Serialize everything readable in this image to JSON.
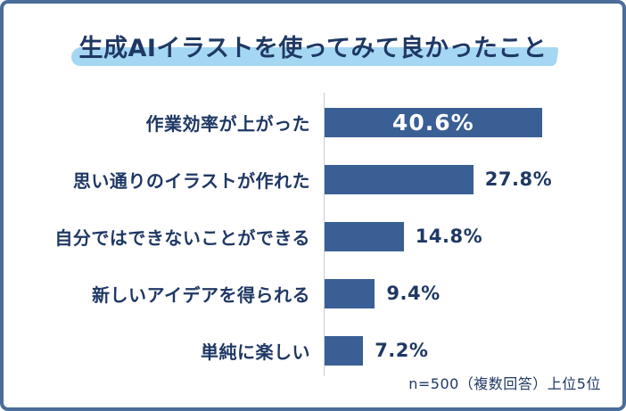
{
  "title": "生成AIイラストを使ってみて良かったこと",
  "footnote": "n=500（複数回答）上位5位",
  "colors": {
    "bar_fill": "#3a5f95",
    "frame_border": "#4a6d99",
    "title_highlight": "#a5d7f2",
    "text_navy": "#1f3864",
    "axis_line": "#c9ced6",
    "value_inside": "#ffffff",
    "page_bg": "#ffffff"
  },
  "chart_data": {
    "type": "bar",
    "orientation": "horizontal",
    "title": "生成AIイラストを使ってみて良かったこと",
    "categories": [
      "作業効率が上がった",
      "思い通りのイラストが作れた",
      "自分ではできないことができる",
      "新しいアイデアを得られる",
      "単純に楽しい"
    ],
    "values": [
      40.6,
      27.8,
      14.8,
      9.4,
      7.2
    ],
    "value_labels": [
      "40.6%",
      "27.8%",
      "14.8%",
      "9.4%",
      "7.2%"
    ],
    "unit": "%",
    "xlim": [
      0,
      45
    ],
    "note": "n=500（複数回答）上位5位",
    "grid": false,
    "legend": false,
    "value_label_position": [
      "inside-center",
      "outside-right",
      "outside-right",
      "outside-right",
      "outside-right"
    ]
  }
}
